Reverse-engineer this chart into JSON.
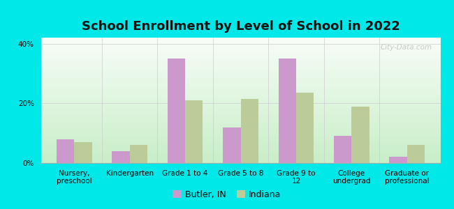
{
  "title": "School Enrollment by Level of School in 2022",
  "categories": [
    "Nursery,\npreschool",
    "Kindergarten",
    "Grade 1 to 4",
    "Grade 5 to 8",
    "Grade 9 to\n12",
    "College\nundergrad",
    "Graduate or\nprofessional"
  ],
  "butler_values": [
    8.0,
    4.0,
    35.0,
    12.0,
    35.0,
    9.0,
    2.0
  ],
  "indiana_values": [
    7.0,
    6.0,
    21.0,
    21.5,
    23.5,
    19.0,
    6.0
  ],
  "butler_color": "#cc99cc",
  "indiana_color": "#bbcc99",
  "background_color": "#00e8e8",
  "ylabel": "",
  "ylim": [
    0,
    42
  ],
  "yticks": [
    0,
    20,
    40
  ],
  "ytick_labels": [
    "0%",
    "20%",
    "40%"
  ],
  "bar_width": 0.32,
  "legend_labels": [
    "Butler, IN",
    "Indiana"
  ],
  "title_fontsize": 13,
  "tick_fontsize": 7.5,
  "legend_fontsize": 9,
  "watermark": "City-Data.com",
  "grad_bottom_color": "#c8eec8",
  "grad_top_color": "#f8fdf8"
}
